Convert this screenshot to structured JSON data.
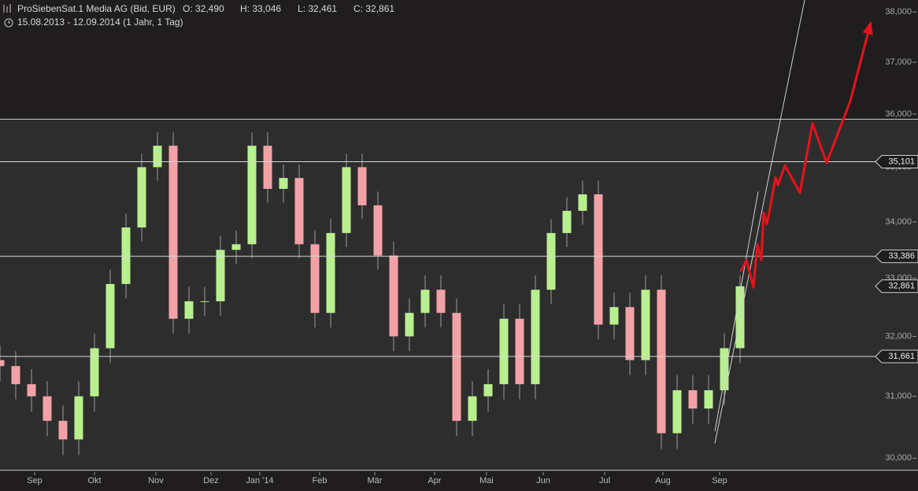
{
  "chart_data": {
    "type": "candlestick",
    "title": "ProSiebenSat.1 Media AG (Bid, EUR)",
    "quote": [
      "O: 32,490",
      "H: 33,046",
      "L: 32,461",
      "C: 32,861"
    ],
    "subtitle": "15.08.2013 - 12.09.2014 (1 Jahr, 1 Tag)",
    "log_scale": true,
    "up_color": "#b9f08f",
    "down_color": "#f2a2a6",
    "x": [
      0,
      5,
      10,
      15,
      20,
      25,
      30,
      35,
      40,
      45,
      50,
      55,
      60,
      65,
      70,
      75,
      80,
      85,
      90,
      95,
      100,
      105,
      110,
      115,
      120,
      125,
      130,
      135,
      140,
      145,
      150,
      155,
      160,
      165,
      170,
      175,
      180,
      185,
      190,
      195,
      200,
      205,
      210,
      215,
      220,
      225,
      230,
      235
    ],
    "open": [
      31.6,
      31.5,
      31.2,
      31.0,
      30.6,
      30.3,
      31.0,
      31.8,
      32.9,
      33.9,
      35.0,
      35.4,
      32.3,
      32.6,
      32.6,
      33.5,
      33.6,
      35.4,
      34.6,
      34.8,
      33.6,
      32.4,
      33.8,
      35.0,
      34.3,
      33.4,
      32.0,
      32.4,
      32.8,
      32.4,
      30.6,
      31.0,
      31.2,
      32.3,
      31.2,
      32.8,
      33.8,
      34.2,
      34.5,
      32.2,
      32.5,
      31.6,
      32.8,
      30.4,
      31.1,
      30.8,
      31.1,
      31.8
    ],
    "high": [
      31.85,
      31.75,
      31.45,
      31.25,
      30.85,
      31.25,
      32.05,
      33.15,
      34.15,
      35.25,
      35.65,
      35.65,
      32.85,
      32.85,
      33.75,
      33.85,
      35.65,
      35.65,
      35.05,
      35.05,
      33.85,
      34.05,
      35.25,
      35.25,
      34.55,
      33.65,
      32.65,
      33.05,
      33.05,
      32.65,
      31.25,
      31.45,
      32.55,
      32.55,
      33.05,
      34.05,
      34.45,
      34.75,
      34.75,
      32.75,
      32.75,
      33.05,
      33.05,
      31.35,
      31.35,
      31.35,
      32.05,
      33.05
    ],
    "low": [
      31.25,
      30.95,
      30.75,
      30.35,
      30.05,
      30.05,
      30.75,
      31.55,
      32.65,
      33.65,
      34.75,
      32.05,
      32.05,
      32.35,
      32.35,
      33.25,
      33.35,
      34.35,
      34.35,
      33.35,
      32.15,
      32.15,
      33.55,
      34.05,
      33.15,
      31.75,
      31.75,
      32.15,
      32.15,
      30.35,
      30.35,
      30.75,
      30.95,
      30.95,
      30.95,
      32.55,
      33.55,
      33.95,
      31.95,
      31.95,
      31.35,
      31.35,
      30.15,
      30.15,
      30.55,
      30.55,
      30.85,
      31.55
    ],
    "close": [
      31.5,
      31.2,
      31.0,
      30.6,
      30.3,
      31.0,
      31.8,
      32.9,
      33.9,
      35.0,
      35.4,
      32.3,
      32.6,
      32.6,
      33.5,
      33.6,
      35.4,
      34.6,
      34.8,
      33.6,
      32.4,
      33.8,
      35.0,
      34.3,
      33.4,
      32.0,
      32.4,
      32.8,
      32.4,
      30.6,
      31.0,
      31.2,
      32.3,
      31.2,
      32.8,
      33.8,
      34.2,
      34.5,
      32.2,
      32.5,
      31.6,
      32.8,
      30.4,
      31.1,
      30.8,
      31.1,
      31.8,
      32.86
    ],
    "xlim": [
      0,
      278
    ],
    "xticks": [
      {
        "value": 11,
        "label": "Sep"
      },
      {
        "value": 30,
        "label": "Okt"
      },
      {
        "value": 49.5,
        "label": "Nov"
      },
      {
        "value": 67,
        "label": "Dez"
      },
      {
        "value": 82.5,
        "label": "Jan '14"
      },
      {
        "value": 101.5,
        "label": "Feb"
      },
      {
        "value": 119,
        "label": "Mär"
      },
      {
        "value": 138,
        "label": "Apr"
      },
      {
        "value": 154.5,
        "label": "Mai"
      },
      {
        "value": 172.5,
        "label": "Jun"
      },
      {
        "value": 192,
        "label": "Jul"
      },
      {
        "value": 210.5,
        "label": "Aug"
      },
      {
        "value": 228.5,
        "label": "Sep"
      }
    ],
    "ylim": [
      29.78,
      38.24
    ],
    "yticks": [
      {
        "value": 30,
        "label": "30,000"
      },
      {
        "value": 31,
        "label": "31,000"
      },
      {
        "value": 32,
        "label": "32,000"
      },
      {
        "value": 33,
        "label": "33,000"
      },
      {
        "value": 34,
        "label": "34,000"
      },
      {
        "value": 35,
        "label": "35,000"
      },
      {
        "value": 36,
        "label": "36,000"
      },
      {
        "value": 37,
        "label": "37,000"
      },
      {
        "value": 38,
        "label": "38,000"
      }
    ],
    "range_lines": [
      35.9,
      29.81
    ],
    "levels": [
      {
        "value": 35.101,
        "label": "35,101"
      },
      {
        "value": 33.386,
        "label": "33,386"
      },
      {
        "value": 31.661,
        "label": "31,661"
      }
    ],
    "last": {
      "value": 32.861,
      "label": "32,861"
    },
    "channel": [
      {
        "x": [
          227,
          255.5
        ],
        "y": [
          30.24,
          38.24
        ]
      },
      {
        "x": [
          227,
          240.75
        ],
        "y": [
          30.43,
          34.55
        ]
      }
    ],
    "forecast": {
      "color": "#e8121b",
      "x": [
        235.25,
        237,
        239.25,
        240.5,
        241.75,
        242.5,
        243.5,
        244.5,
        246.25,
        247,
        249.25,
        254,
        258,
        262.5,
        270,
        276.25
      ],
      "y": [
        33.12,
        33.32,
        32.84,
        33.6,
        33.32,
        34.17,
        33.96,
        34.24,
        34.81,
        34.67,
        35.03,
        34.53,
        35.82,
        35.08,
        36.25,
        37.73
      ]
    }
  }
}
